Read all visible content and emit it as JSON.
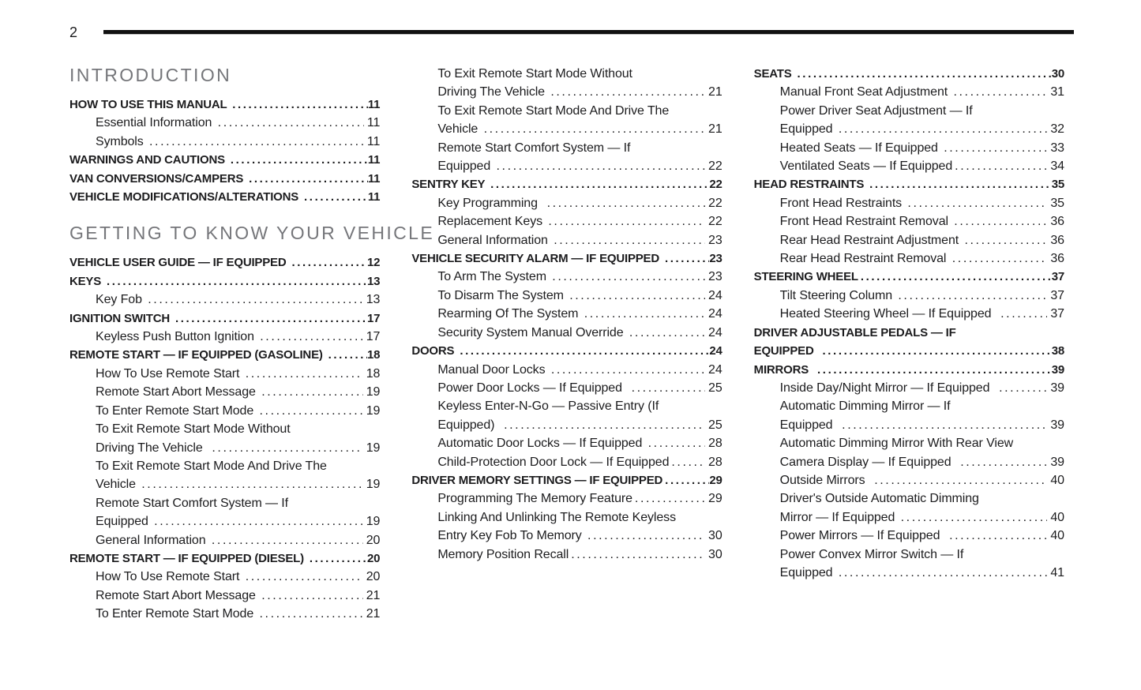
{
  "page": {
    "number": "2"
  },
  "colors": {
    "text": "#1c1c1e",
    "heading": "#75767a",
    "rule": "#111111"
  },
  "columns": [
    {
      "blocks": [
        {
          "type": "section",
          "label": "INTRODUCTION"
        },
        {
          "type": "entry",
          "level": 1,
          "lines": [
            "HOW TO USE THIS MANUAL "
          ],
          "page": "11"
        },
        {
          "type": "entry",
          "level": 2,
          "lines": [
            "Essential Information "
          ],
          "page": "11"
        },
        {
          "type": "entry",
          "level": 2,
          "lines": [
            "Symbols "
          ],
          "page": "11"
        },
        {
          "type": "entry",
          "level": 1,
          "lines": [
            "WARNINGS AND CAUTIONS "
          ],
          "page": "11"
        },
        {
          "type": "entry",
          "level": 1,
          "lines": [
            "VAN CONVERSIONS/CAMPERS "
          ],
          "page": "11"
        },
        {
          "type": "entry",
          "level": 1,
          "lines": [
            "VEHICLE MODIFICATIONS/ALTERATIONS "
          ],
          "page": "11"
        },
        {
          "type": "section",
          "label": "GETTING TO KNOW YOUR VEHICLE"
        },
        {
          "type": "entry",
          "level": 1,
          "lines": [
            "VEHICLE USER GUIDE — IF EQUIPPED "
          ],
          "page": "12"
        },
        {
          "type": "entry",
          "level": 1,
          "lines": [
            "KEYS "
          ],
          "page": "13"
        },
        {
          "type": "entry",
          "level": 2,
          "lines": [
            "Key Fob "
          ],
          "page": "13"
        },
        {
          "type": "entry",
          "level": 1,
          "lines": [
            "IGNITION SWITCH "
          ],
          "page": "17"
        },
        {
          "type": "entry",
          "level": 2,
          "lines": [
            "Keyless Push Button Ignition "
          ],
          "page": "17"
        },
        {
          "type": "entry",
          "level": 1,
          "lines": [
            "REMOTE START — IF EQUIPPED (GASOLINE) "
          ],
          "page": "18"
        },
        {
          "type": "entry",
          "level": 2,
          "lines": [
            "How To Use Remote Start "
          ],
          "page": "18"
        },
        {
          "type": "entry",
          "level": 2,
          "lines": [
            "Remote Start Abort Message "
          ],
          "page": "19"
        },
        {
          "type": "entry",
          "level": 2,
          "lines": [
            "To Enter Remote Start Mode "
          ],
          "page": "19"
        },
        {
          "type": "entry",
          "level": 2,
          "lines": [
            "To Exit Remote Start Mode Without",
            "Driving The Vehicle  "
          ],
          "page": "19"
        },
        {
          "type": "entry",
          "level": 2,
          "lines": [
            "To Exit Remote Start Mode And Drive The",
            "Vehicle "
          ],
          "page": "19"
        },
        {
          "type": "entry",
          "level": 2,
          "lines": [
            "Remote Start Comfort System — If",
            "Equipped "
          ],
          "page": "19"
        },
        {
          "type": "entry",
          "level": 2,
          "lines": [
            "General Information "
          ],
          "page": "20"
        },
        {
          "type": "entry",
          "level": 1,
          "lines": [
            "REMOTE START — IF EQUIPPED (DIESEL) "
          ],
          "page": "20"
        },
        {
          "type": "entry",
          "level": 2,
          "lines": [
            "How To Use Remote Start "
          ],
          "page": "20"
        },
        {
          "type": "entry",
          "level": 2,
          "lines": [
            "Remote Start Abort Message "
          ],
          "page": "21"
        },
        {
          "type": "entry",
          "level": 2,
          "lines": [
            "To Enter Remote Start Mode "
          ],
          "page": "21"
        }
      ]
    },
    {
      "blocks": [
        {
          "type": "entry",
          "level": 2,
          "lines": [
            "To Exit Remote Start Mode Without",
            "Driving The Vehicle "
          ],
          "page": "21"
        },
        {
          "type": "entry",
          "level": 2,
          "lines": [
            "To Exit Remote Start Mode And Drive The",
            "Vehicle "
          ],
          "page": "21"
        },
        {
          "type": "entry",
          "level": 2,
          "lines": [
            "Remote Start Comfort System — If",
            "Equipped "
          ],
          "page": "22"
        },
        {
          "type": "entry",
          "level": 1,
          "lines": [
            "SENTRY KEY "
          ],
          "page": "22"
        },
        {
          "type": "entry",
          "level": 2,
          "lines": [
            "Key Programming  "
          ],
          "page": "22"
        },
        {
          "type": "entry",
          "level": 2,
          "lines": [
            "Replacement Keys "
          ],
          "page": "22"
        },
        {
          "type": "entry",
          "level": 2,
          "lines": [
            "General Information "
          ],
          "page": "23"
        },
        {
          "type": "entry",
          "level": 1,
          "lines": [
            "VEHICLE SECURITY ALARM — IF EQUIPPED "
          ],
          "page": "23"
        },
        {
          "type": "entry",
          "level": 2,
          "lines": [
            "To Arm The System "
          ],
          "page": "23"
        },
        {
          "type": "entry",
          "level": 2,
          "lines": [
            "To Disarm The System "
          ],
          "page": "24"
        },
        {
          "type": "entry",
          "level": 2,
          "lines": [
            "Rearming Of The System "
          ],
          "page": "24"
        },
        {
          "type": "entry",
          "level": 2,
          "lines": [
            "Security System Manual Override "
          ],
          "page": "24"
        },
        {
          "type": "entry",
          "level": 1,
          "lines": [
            "DOORS "
          ],
          "page": "24"
        },
        {
          "type": "entry",
          "level": 2,
          "lines": [
            "Manual Door Locks "
          ],
          "page": "24"
        },
        {
          "type": "entry",
          "level": 2,
          "lines": [
            "Power Door Locks — If Equipped  "
          ],
          "page": "25"
        },
        {
          "type": "entry",
          "level": 2,
          "lines": [
            "Keyless Enter-N-Go — Passive Entry (If",
            "Equipped)  "
          ],
          "page": "25"
        },
        {
          "type": "entry",
          "level": 2,
          "lines": [
            "Automatic Door Locks — If Equipped "
          ],
          "page": "28"
        },
        {
          "type": "entry",
          "level": 2,
          "lines": [
            "Child-Protection Door Lock — If Equipped"
          ],
          "page": "28"
        },
        {
          "type": "entry",
          "level": 1,
          "lines": [
            "DRIVER MEMORY SETTINGS — IF EQUIPPED"
          ],
          "page": "29"
        },
        {
          "type": "entry",
          "level": 2,
          "lines": [
            "Programming The Memory Feature"
          ],
          "page": "29"
        },
        {
          "type": "entry",
          "level": 2,
          "lines": [
            "Linking And Unlinking The Remote Keyless",
            "Entry Key Fob To Memory "
          ],
          "page": "30"
        },
        {
          "type": "entry",
          "level": 2,
          "lines": [
            "Memory Position Recall"
          ],
          "page": "30"
        }
      ]
    },
    {
      "blocks": [
        {
          "type": "entry",
          "level": 1,
          "lines": [
            "SEATS "
          ],
          "page": "30"
        },
        {
          "type": "entry",
          "level": 2,
          "lines": [
            "Manual Front Seat Adjustment "
          ],
          "page": "31"
        },
        {
          "type": "entry",
          "level": 2,
          "lines": [
            "Power Driver Seat Adjustment — If",
            "Equipped "
          ],
          "page": "32"
        },
        {
          "type": "entry",
          "level": 2,
          "lines": [
            "Heated Seats — If Equipped "
          ],
          "page": "33"
        },
        {
          "type": "entry",
          "level": 2,
          "lines": [
            "Ventilated Seats — If Equipped"
          ],
          "page": "34"
        },
        {
          "type": "entry",
          "level": 1,
          "lines": [
            "HEAD RESTRAINTS "
          ],
          "page": "35"
        },
        {
          "type": "entry",
          "level": 2,
          "lines": [
            "Front Head Restraints "
          ],
          "page": "35"
        },
        {
          "type": "entry",
          "level": 2,
          "lines": [
            "Front Head Restraint Removal "
          ],
          "page": "36"
        },
        {
          "type": "entry",
          "level": 2,
          "lines": [
            "Rear Head Restraint Adjustment "
          ],
          "page": "36"
        },
        {
          "type": "entry",
          "level": 2,
          "lines": [
            "Rear Head Restraint Removal "
          ],
          "page": "36"
        },
        {
          "type": "entry",
          "level": 1,
          "lines": [
            "STEERING WHEEL"
          ],
          "page": "37"
        },
        {
          "type": "entry",
          "level": 2,
          "lines": [
            "Tilt Steering Column "
          ],
          "page": "37"
        },
        {
          "type": "entry",
          "level": 2,
          "lines": [
            "Heated Steering Wheel — If Equipped  "
          ],
          "page": "37"
        },
        {
          "type": "entry",
          "level": 1,
          "lines": [
            "DRIVER ADJUSTABLE PEDALS — IF",
            "EQUIPPED  "
          ],
          "page": "38"
        },
        {
          "type": "entry",
          "level": 1,
          "lines": [
            "MIRRORS  "
          ],
          "page": "39"
        },
        {
          "type": "entry",
          "level": 2,
          "lines": [
            "Inside Day/Night Mirror — If Equipped  "
          ],
          "page": "39"
        },
        {
          "type": "entry",
          "level": 2,
          "lines": [
            "Automatic Dimming Mirror — If",
            "Equipped  "
          ],
          "page": "39"
        },
        {
          "type": "entry",
          "level": 2,
          "lines": [
            "Automatic Dimming Mirror With Rear View",
            "Camera Display — If Equipped  "
          ],
          "page": "39"
        },
        {
          "type": "entry",
          "level": 2,
          "lines": [
            "Outside Mirrors  "
          ],
          "page": "40"
        },
        {
          "type": "entry",
          "level": 2,
          "lines": [
            "Driver's Outside Automatic Dimming",
            "Mirror — If Equipped "
          ],
          "page": "40"
        },
        {
          "type": "entry",
          "level": 2,
          "lines": [
            "Power Mirrors — If Equipped  "
          ],
          "page": "40"
        },
        {
          "type": "entry",
          "level": 2,
          "lines": [
            "Power Convex Mirror Switch — If",
            "Equipped "
          ],
          "page": "41"
        }
      ]
    }
  ]
}
